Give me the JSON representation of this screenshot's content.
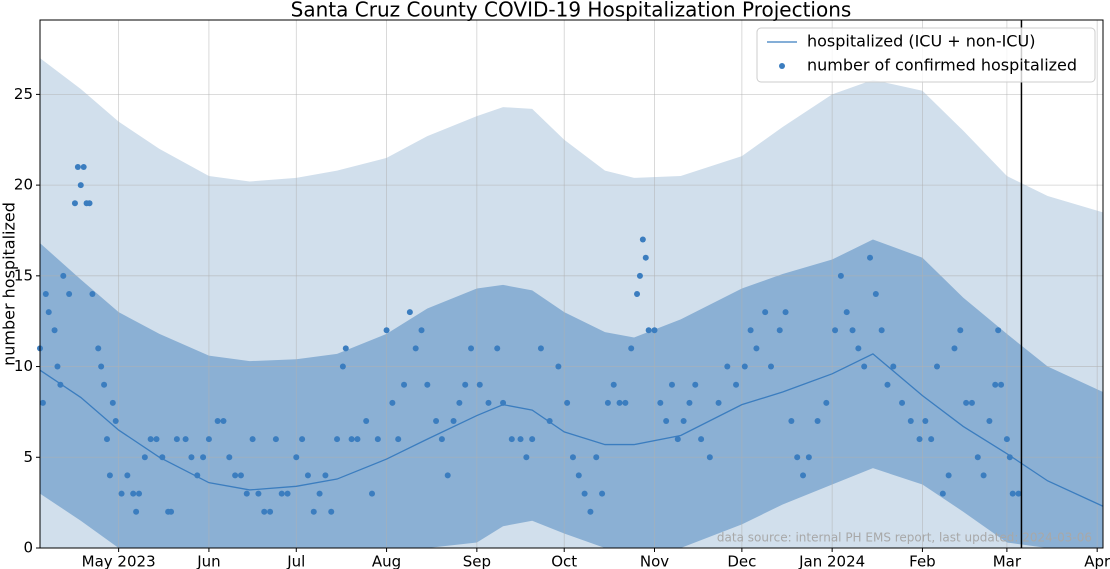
{
  "chart_data": {
    "type": "line",
    "title": "Santa Cruz County COVID-19 Hospitalization Projections",
    "y_label": "number hospitalized",
    "annotation": "data source: internal PH EMS report, last updated: 2024-03-06",
    "xlim": [
      "2023-04-04",
      "2024-04-03"
    ],
    "ylim": [
      0,
      29.1
    ],
    "xticks": [
      {
        "value": "2023-05-01",
        "label": "May 2023"
      },
      {
        "value": "2023-06-01",
        "label": "Jun"
      },
      {
        "value": "2023-07-01",
        "label": "Jul"
      },
      {
        "value": "2023-08-01",
        "label": "Aug"
      },
      {
        "value": "2023-09-01",
        "label": "Sep"
      },
      {
        "value": "2023-10-01",
        "label": "Oct"
      },
      {
        "value": "2023-11-01",
        "label": "Nov"
      },
      {
        "value": "2023-12-01",
        "label": "Dec"
      },
      {
        "value": "2024-01-01",
        "label": "Jan 2024"
      },
      {
        "value": "2024-02-01",
        "label": "Feb"
      },
      {
        "value": "2024-03-01",
        "label": "Mar"
      },
      {
        "value": "2024-04-01",
        "label": "Apr"
      }
    ],
    "yticks": [
      0,
      5,
      10,
      15,
      20,
      25
    ],
    "grid": true,
    "legend": "upper right",
    "vline": "2024-03-06",
    "model_x": [
      "2023-04-04",
      "2023-04-18",
      "2023-05-01",
      "2023-05-15",
      "2023-06-01",
      "2023-06-15",
      "2023-07-01",
      "2023-07-15",
      "2023-08-01",
      "2023-08-15",
      "2023-09-01",
      "2023-09-10",
      "2023-09-20",
      "2023-10-01",
      "2023-10-15",
      "2023-10-25",
      "2023-11-10",
      "2023-12-01",
      "2023-12-15",
      "2024-01-01",
      "2024-01-15",
      "2024-02-01",
      "2024-02-15",
      "2024-03-01",
      "2024-03-15",
      "2024-04-03"
    ],
    "bands": [
      {
        "color": "#d1dfec",
        "upper": [
          27,
          25.3,
          23.5,
          22,
          20.5,
          20.2,
          20.4,
          20.8,
          21.5,
          22.7,
          23.8,
          24.3,
          24.2,
          22.5,
          20.8,
          20.4,
          20.5,
          21.6,
          23.2,
          25,
          25.8,
          25.2,
          23,
          20.5,
          19.4,
          18.5
        ]
      },
      {
        "color": "#8bb0d4",
        "upper": [
          16.8,
          14.8,
          13,
          11.8,
          10.6,
          10.3,
          10.4,
          10.7,
          11.8,
          13.2,
          14.3,
          14.5,
          14.2,
          13,
          11.9,
          11.6,
          12.6,
          14.3,
          15.1,
          15.9,
          17,
          16,
          13.8,
          11.8,
          10,
          8.6
        ],
        "lower": [
          3,
          1.5,
          0,
          0,
          0,
          0,
          0,
          0,
          0,
          0,
          0.3,
          1.2,
          1.5,
          0.8,
          0,
          0,
          0,
          1.3,
          2.4,
          3.5,
          4.4,
          3.5,
          2,
          0.3,
          0,
          0
        ]
      }
    ],
    "series": [
      {
        "name": "hospitalized (ICU + non-ICU)",
        "color": "#3b7dbf",
        "marker": "line",
        "values": [
          9.8,
          8.3,
          6.5,
          5,
          3.6,
          3.2,
          3.4,
          3.8,
          4.9,
          6,
          7.3,
          7.9,
          7.6,
          6.4,
          5.7,
          5.7,
          6.2,
          7.9,
          8.6,
          9.6,
          10.7,
          8.4,
          6.7,
          5.2,
          3.7,
          2.3
        ]
      },
      {
        "name": "number of confirmed hospitalized",
        "color": "#3b7dbf",
        "marker": "dot",
        "x": [
          "2023-04-04",
          "2023-04-05",
          "2023-04-06",
          "2023-04-07",
          "2023-04-09",
          "2023-04-10",
          "2023-04-11",
          "2023-04-12",
          "2023-04-14",
          "2023-04-16",
          "2023-04-17",
          "2023-04-18",
          "2023-04-19",
          "2023-04-20",
          "2023-04-21",
          "2023-04-22",
          "2023-04-24",
          "2023-04-25",
          "2023-04-26",
          "2023-04-27",
          "2023-04-28",
          "2023-04-29",
          "2023-04-30",
          "2023-05-02",
          "2023-05-04",
          "2023-05-06",
          "2023-05-07",
          "2023-05-08",
          "2023-05-10",
          "2023-05-12",
          "2023-05-14",
          "2023-05-16",
          "2023-05-18",
          "2023-05-19",
          "2023-05-21",
          "2023-05-24",
          "2023-05-26",
          "2023-05-28",
          "2023-05-30",
          "2023-06-01",
          "2023-06-04",
          "2023-06-06",
          "2023-06-08",
          "2023-06-10",
          "2023-06-12",
          "2023-06-14",
          "2023-06-16",
          "2023-06-18",
          "2023-06-20",
          "2023-06-22",
          "2023-06-24",
          "2023-06-26",
          "2023-06-28",
          "2023-07-01",
          "2023-07-03",
          "2023-07-05",
          "2023-07-07",
          "2023-07-09",
          "2023-07-11",
          "2023-07-13",
          "2023-07-15",
          "2023-07-17",
          "2023-07-18",
          "2023-07-20",
          "2023-07-22",
          "2023-07-25",
          "2023-07-27",
          "2023-07-29",
          "2023-08-01",
          "2023-08-03",
          "2023-08-05",
          "2023-08-07",
          "2023-08-09",
          "2023-08-11",
          "2023-08-13",
          "2023-08-15",
          "2023-08-18",
          "2023-08-20",
          "2023-08-22",
          "2023-08-24",
          "2023-08-26",
          "2023-08-28",
          "2023-08-30",
          "2023-09-02",
          "2023-09-05",
          "2023-09-08",
          "2023-09-10",
          "2023-09-13",
          "2023-09-16",
          "2023-09-18",
          "2023-09-20",
          "2023-09-23",
          "2023-09-26",
          "2023-09-29",
          "2023-10-02",
          "2023-10-04",
          "2023-10-06",
          "2023-10-08",
          "2023-10-10",
          "2023-10-12",
          "2023-10-14",
          "2023-10-16",
          "2023-10-18",
          "2023-10-20",
          "2023-10-22",
          "2023-10-24",
          "2023-10-26",
          "2023-10-27",
          "2023-10-28",
          "2023-10-29",
          "2023-10-30",
          "2023-11-01",
          "2023-11-03",
          "2023-11-05",
          "2023-11-07",
          "2023-11-09",
          "2023-11-11",
          "2023-11-13",
          "2023-11-15",
          "2023-11-17",
          "2023-11-20",
          "2023-11-23",
          "2023-11-26",
          "2023-11-29",
          "2023-12-02",
          "2023-12-04",
          "2023-12-06",
          "2023-12-09",
          "2023-12-11",
          "2023-12-14",
          "2023-12-16",
          "2023-12-18",
          "2023-12-20",
          "2023-12-22",
          "2023-12-24",
          "2023-12-27",
          "2023-12-30",
          "2024-01-02",
          "2024-01-04",
          "2024-01-06",
          "2024-01-08",
          "2024-01-10",
          "2024-01-12",
          "2024-01-14",
          "2024-01-16",
          "2024-01-18",
          "2024-01-20",
          "2024-01-22",
          "2024-01-25",
          "2024-01-28",
          "2024-01-31",
          "2024-02-02",
          "2024-02-04",
          "2024-02-06",
          "2024-02-08",
          "2024-02-10",
          "2024-02-12",
          "2024-02-14",
          "2024-02-16",
          "2024-02-18",
          "2024-02-20",
          "2024-02-22",
          "2024-02-24",
          "2024-02-26",
          "2024-02-27",
          "2024-02-28",
          "2024-03-01",
          "2024-03-02",
          "2024-03-03",
          "2024-03-05"
        ],
        "values": [
          11,
          8,
          14,
          13,
          12,
          10,
          9,
          15,
          14,
          19,
          21,
          20,
          21,
          19,
          19,
          14,
          11,
          10,
          9,
          6,
          4,
          8,
          7,
          3,
          4,
          3,
          2,
          3,
          5,
          6,
          6,
          5,
          2,
          2,
          6,
          6,
          5,
          4,
          5,
          6,
          7,
          7,
          5,
          4,
          4,
          3,
          6,
          3,
          2,
          2,
          6,
          3,
          3,
          5,
          6,
          4,
          2,
          3,
          4,
          2,
          6,
          10,
          11,
          6,
          6,
          7,
          3,
          6,
          12,
          8,
          6,
          9,
          13,
          11,
          12,
          9,
          7,
          6,
          4,
          7,
          8,
          9,
          11,
          9,
          8,
          11,
          8,
          6,
          6,
          5,
          6,
          11,
          7,
          10,
          8,
          5,
          4,
          3,
          2,
          5,
          3,
          8,
          9,
          8,
          8,
          11,
          14,
          15,
          17,
          16,
          12,
          12,
          8,
          7,
          9,
          6,
          7,
          8,
          9,
          6,
          5,
          8,
          10,
          9,
          10,
          12,
          11,
          13,
          10,
          12,
          13,
          7,
          5,
          4,
          5,
          7,
          8,
          12,
          15,
          13,
          12,
          11,
          10,
          16,
          14,
          12,
          9,
          10,
          8,
          7,
          6,
          7,
          6,
          10,
          3,
          4,
          11,
          12,
          8,
          8,
          5,
          4,
          7,
          9,
          12,
          9,
          6,
          5,
          3,
          3
        ]
      }
    ]
  }
}
